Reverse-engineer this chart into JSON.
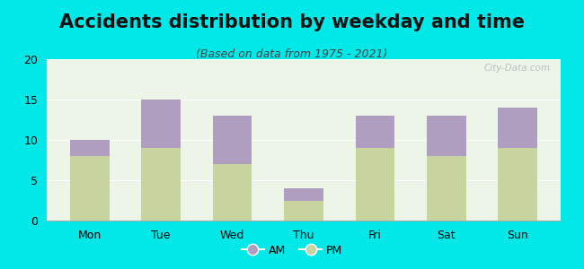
{
  "categories": [
    "Mon",
    "Tue",
    "Wed",
    "Thu",
    "Fri",
    "Sat",
    "Sun"
  ],
  "pm_values": [
    8.0,
    9.0,
    7.0,
    2.5,
    9.0,
    8.0,
    9.0
  ],
  "am_values": [
    2.0,
    6.0,
    6.0,
    1.5,
    4.0,
    5.0,
    5.0
  ],
  "am_color": "#b09ec0",
  "pm_color": "#c8d4a0",
  "title": "Accidents distribution by weekday and time",
  "subtitle": "(Based on data from 1975 - 2021)",
  "ylim": [
    0,
    20
  ],
  "yticks": [
    0,
    5,
    10,
    15,
    20
  ],
  "background_color": "#00e8e8",
  "plot_bg_color": "#edf4e8",
  "bar_width": 0.55,
  "watermark": "City-Data.com",
  "legend_am": "AM",
  "legend_pm": "PM",
  "title_fontsize": 15,
  "subtitle_fontsize": 9,
  "tick_fontsize": 9
}
